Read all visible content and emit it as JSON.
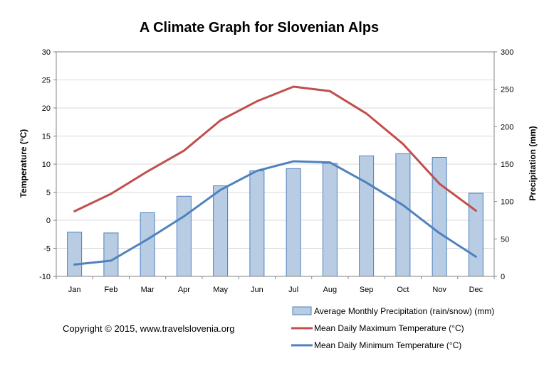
{
  "chart_data": {
    "type": "bar+line",
    "title": "A Climate Graph for Slovenian Alps",
    "categories": [
      "Jan",
      "Feb",
      "Mar",
      "Apr",
      "May",
      "Jun",
      "Jul",
      "Aug",
      "Sep",
      "Oct",
      "Nov",
      "Dec"
    ],
    "y_left": {
      "label": "Temperature (°C)",
      "min": -10,
      "max": 30,
      "step": 5,
      "ticks": [
        "-10",
        "-5",
        "0",
        "5",
        "10",
        "15",
        "20",
        "25",
        "30"
      ]
    },
    "y_right": {
      "label": "Precipitation (mm)",
      "min": 0,
      "max": 300,
      "step": 50,
      "ticks": [
        "0",
        "50",
        "100",
        "150",
        "200",
        "250",
        "300"
      ]
    },
    "grid": true,
    "legend_position": "bottom-right",
    "series": [
      {
        "name": "Average Monthly Precipitation (rain/snow) (mm)",
        "type": "bar",
        "axis": "right",
        "color": "#b8cce4",
        "border": "#4f81bd",
        "values": [
          59,
          58,
          85,
          107,
          121,
          141,
          144,
          151,
          161,
          164,
          159,
          111
        ]
      },
      {
        "name": "Mean Daily Maximum Temperature  (°C)",
        "type": "line",
        "axis": "left",
        "color": "#c0504d",
        "values": [
          1.6,
          4.7,
          8.7,
          12.4,
          17.8,
          21.2,
          23.8,
          23.0,
          19.0,
          13.6,
          6.5,
          1.7
        ]
      },
      {
        "name": "Mean Daily Minimum Temperature (°C)",
        "type": "line",
        "axis": "left",
        "color": "#4f81bd",
        "values": [
          -7.9,
          -7.2,
          -3.4,
          0.7,
          5.4,
          8.8,
          10.5,
          10.3,
          6.7,
          2.7,
          -2.3,
          -6.5
        ]
      }
    ]
  },
  "copyright": "Copyright © 2015, www.travelslovenia.org"
}
